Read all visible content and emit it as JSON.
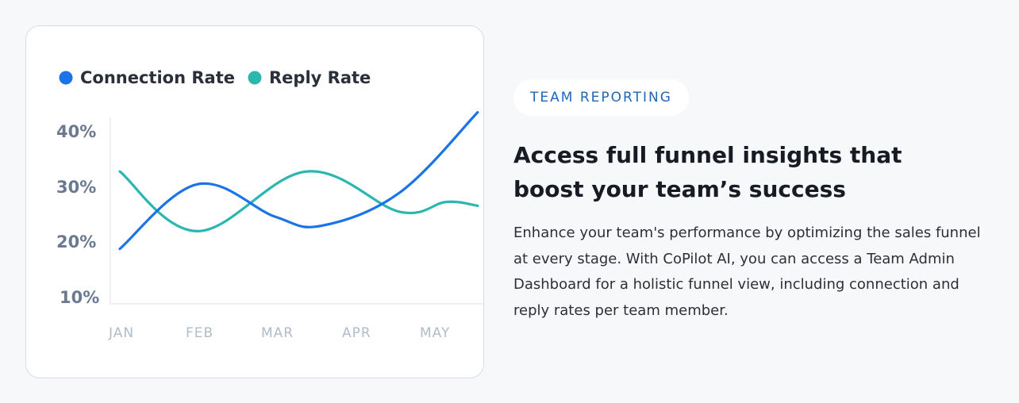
{
  "card": {
    "legend": [
      {
        "label": "Connection Rate",
        "color": "#1a73e8"
      },
      {
        "label": "Reply Rate",
        "color": "#2bb7b0"
      }
    ]
  },
  "chart_data": {
    "type": "line",
    "categories": [
      "JAN",
      "FEB",
      "MAR",
      "APR",
      "MAY"
    ],
    "y_ticks": [
      "40%",
      "30%",
      "20%",
      "10%"
    ],
    "ylim": [
      10,
      40
    ],
    "grid": false,
    "legend_position": "top-left",
    "series": [
      {
        "name": "Connection Rate",
        "color": "#1a73e8",
        "points": [
          [
            0.0,
            18.8
          ],
          [
            1.0,
            30.5
          ],
          [
            2.0,
            24.6
          ],
          [
            2.6,
            23.0
          ],
          [
            3.6,
            29.0
          ],
          [
            4.6,
            43.5
          ]
        ]
      },
      {
        "name": "Reply Rate",
        "color": "#2bb7b0",
        "points": [
          [
            0.0,
            32.8
          ],
          [
            1.0,
            22.0
          ],
          [
            2.4,
            32.8
          ],
          [
            3.6,
            25.5
          ],
          [
            4.2,
            27.3
          ],
          [
            4.6,
            26.6
          ]
        ]
      }
    ]
  },
  "info": {
    "badge": "TEAM REPORTING",
    "headline": "Access full funnel insights that boost your team’s success",
    "body": "Enhance your team's performance by optimizing the sales funnel at every stage. With CoPilot AI, you can access a Team Admin Dashboard for a holistic funnel view, including connection and reply rates per team member."
  }
}
